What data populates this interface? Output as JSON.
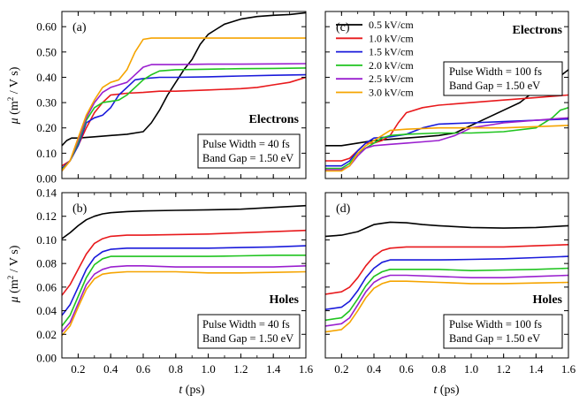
{
  "figure": {
    "xlabel_italic": "t",
    "xlabel_rest": " (ps)",
    "ylabel_mu": "μ",
    "ylabel_a": " (m",
    "ylabel_sup": "2",
    "ylabel_b": " / V s)"
  },
  "legend": [
    {
      "label": "0.5 kV/cm",
      "color": "#000000"
    },
    {
      "label": "1.0 kV/cm",
      "color": "#e8191c"
    },
    {
      "label": "1.5 kV/cm",
      "color": "#1a1adb"
    },
    {
      "label": "2.0 kV/cm",
      "color": "#1fc41f"
    },
    {
      "label": "2.5 kV/cm",
      "color": "#9a1fcf"
    },
    {
      "label": "3.0 kV/cm",
      "color": "#f5a400"
    }
  ],
  "chart_data": [
    {
      "type": "line",
      "panel": "(a)",
      "title": "Electrons",
      "box_lines": [
        "Pulse Width = 40 fs",
        "Band Gap = 1.50 eV"
      ],
      "xlabel": "t (ps)",
      "ylabel": "μ (m2 / V s)",
      "xlim": [
        0.1,
        1.6
      ],
      "ylim": [
        0.0,
        0.66
      ],
      "xticks": [
        "0.2",
        "0.4",
        "0.6",
        "0.8",
        "1.0",
        "1.2",
        "1.4",
        "1.6"
      ],
      "yticks": [
        "0.00",
        "0.10",
        "0.20",
        "0.30",
        "0.40",
        "0.50",
        "0.60"
      ],
      "series": [
        {
          "name": "0.5 kV/cm",
          "x": [
            0.1,
            0.13,
            0.16,
            0.2,
            0.3,
            0.4,
            0.5,
            0.6,
            0.65,
            0.7,
            0.75,
            0.8,
            0.85,
            0.9,
            0.95,
            1.0,
            1.05,
            1.1,
            1.2,
            1.3,
            1.4,
            1.5,
            1.6
          ],
          "y": [
            0.13,
            0.15,
            0.16,
            0.16,
            0.165,
            0.17,
            0.175,
            0.185,
            0.22,
            0.27,
            0.33,
            0.38,
            0.43,
            0.47,
            0.53,
            0.57,
            0.59,
            0.61,
            0.63,
            0.64,
            0.645,
            0.648,
            0.655
          ]
        },
        {
          "name": "1.0 kV/cm",
          "x": [
            0.1,
            0.15,
            0.2,
            0.25,
            0.3,
            0.35,
            0.4,
            0.5,
            0.6,
            0.7,
            0.8,
            1.0,
            1.2,
            1.3,
            1.4,
            1.5,
            1.6
          ],
          "y": [
            0.05,
            0.07,
            0.13,
            0.2,
            0.26,
            0.3,
            0.33,
            0.337,
            0.34,
            0.345,
            0.345,
            0.35,
            0.355,
            0.36,
            0.37,
            0.38,
            0.4
          ]
        },
        {
          "name": "1.5 kV/cm",
          "x": [
            0.1,
            0.15,
            0.2,
            0.25,
            0.3,
            0.35,
            0.4,
            0.45,
            0.5,
            0.55,
            0.6,
            0.7,
            0.8,
            1.0,
            1.2,
            1.4,
            1.6
          ],
          "y": [
            0.04,
            0.07,
            0.13,
            0.22,
            0.24,
            0.25,
            0.28,
            0.33,
            0.36,
            0.39,
            0.395,
            0.4,
            0.4,
            0.402,
            0.405,
            0.408,
            0.41
          ]
        },
        {
          "name": "2.0 kV/cm",
          "x": [
            0.1,
            0.15,
            0.2,
            0.25,
            0.3,
            0.35,
            0.4,
            0.45,
            0.5,
            0.55,
            0.6,
            0.65,
            0.7,
            0.8,
            1.0,
            1.2,
            1.4,
            1.6
          ],
          "y": [
            0.035,
            0.07,
            0.14,
            0.23,
            0.28,
            0.3,
            0.305,
            0.31,
            0.33,
            0.36,
            0.39,
            0.41,
            0.425,
            0.43,
            0.432,
            0.434,
            0.435,
            0.437
          ]
        },
        {
          "name": "2.5 kV/cm",
          "x": [
            0.1,
            0.15,
            0.2,
            0.25,
            0.3,
            0.35,
            0.4,
            0.45,
            0.5,
            0.55,
            0.6,
            0.65,
            0.7,
            0.8,
            1.0,
            1.2,
            1.4,
            1.6
          ],
          "y": [
            0.03,
            0.07,
            0.15,
            0.24,
            0.3,
            0.34,
            0.36,
            0.37,
            0.38,
            0.41,
            0.44,
            0.45,
            0.45,
            0.45,
            0.452,
            0.452,
            0.453,
            0.454
          ]
        },
        {
          "name": "3.0 kV/cm",
          "x": [
            0.1,
            0.15,
            0.2,
            0.25,
            0.3,
            0.35,
            0.4,
            0.45,
            0.5,
            0.55,
            0.6,
            0.65,
            0.7,
            0.8,
            1.0,
            1.2,
            1.4,
            1.6
          ],
          "y": [
            0.03,
            0.07,
            0.16,
            0.25,
            0.31,
            0.36,
            0.38,
            0.39,
            0.43,
            0.5,
            0.55,
            0.555,
            0.555,
            0.555,
            0.555,
            0.555,
            0.555,
            0.555
          ]
        }
      ]
    },
    {
      "type": "line",
      "panel": "(c)",
      "title": "Electrons",
      "box_lines": [
        "Pulse Width = 100 fs",
        "Band Gap = 1.50 eV"
      ],
      "xlabel": "t (ps)",
      "ylabel": "μ (m2 / V s)",
      "xlim": [
        0.1,
        1.6
      ],
      "ylim": [
        0.0,
        0.66
      ],
      "xticks": [
        "0.2",
        "0.4",
        "0.6",
        "0.8",
        "1.0",
        "1.2",
        "1.4",
        "1.6"
      ],
      "yticks": [],
      "series": [
        {
          "name": "0.5 kV/cm",
          "x": [
            0.1,
            0.2,
            0.3,
            0.4,
            0.5,
            0.6,
            0.7,
            0.8,
            0.9,
            1.0,
            1.1,
            1.2,
            1.3,
            1.4,
            1.5,
            1.6
          ],
          "y": [
            0.13,
            0.13,
            0.14,
            0.15,
            0.155,
            0.16,
            0.165,
            0.17,
            0.18,
            0.21,
            0.24,
            0.27,
            0.3,
            0.35,
            0.38,
            0.43
          ]
        },
        {
          "name": "1.0 kV/cm",
          "x": [
            0.1,
            0.2,
            0.25,
            0.3,
            0.35,
            0.4,
            0.45,
            0.5,
            0.55,
            0.6,
            0.7,
            0.8,
            1.0,
            1.2,
            1.4,
            1.6
          ],
          "y": [
            0.07,
            0.07,
            0.08,
            0.11,
            0.14,
            0.14,
            0.15,
            0.17,
            0.22,
            0.26,
            0.28,
            0.29,
            0.3,
            0.31,
            0.32,
            0.33
          ]
        },
        {
          "name": "1.5 kV/cm",
          "x": [
            0.1,
            0.2,
            0.25,
            0.3,
            0.35,
            0.4,
            0.5,
            0.6,
            0.7,
            0.8,
            1.0,
            1.2,
            1.4,
            1.6
          ],
          "y": [
            0.05,
            0.05,
            0.07,
            0.11,
            0.14,
            0.16,
            0.165,
            0.175,
            0.2,
            0.215,
            0.22,
            0.225,
            0.23,
            0.235
          ]
        },
        {
          "name": "2.0 kV/cm",
          "x": [
            0.1,
            0.2,
            0.25,
            0.3,
            0.35,
            0.4,
            0.45,
            0.5,
            0.6,
            0.8,
            1.0,
            1.2,
            1.4,
            1.5,
            1.55,
            1.6
          ],
          "y": [
            0.04,
            0.04,
            0.06,
            0.1,
            0.12,
            0.14,
            0.16,
            0.17,
            0.175,
            0.18,
            0.18,
            0.185,
            0.2,
            0.24,
            0.27,
            0.28
          ]
        },
        {
          "name": "2.5 kV/cm",
          "x": [
            0.1,
            0.2,
            0.25,
            0.3,
            0.35,
            0.4,
            0.5,
            0.6,
            0.7,
            0.8,
            0.9,
            1.0,
            1.2,
            1.4,
            1.6
          ],
          "y": [
            0.035,
            0.035,
            0.05,
            0.09,
            0.12,
            0.13,
            0.135,
            0.14,
            0.145,
            0.15,
            0.17,
            0.2,
            0.22,
            0.23,
            0.24
          ]
        },
        {
          "name": "3.0 kV/cm",
          "x": [
            0.1,
            0.2,
            0.25,
            0.3,
            0.35,
            0.4,
            0.45,
            0.5,
            0.6,
            0.8,
            1.0,
            1.2,
            1.4,
            1.6
          ],
          "y": [
            0.03,
            0.03,
            0.05,
            0.1,
            0.13,
            0.15,
            0.17,
            0.19,
            0.195,
            0.2,
            0.2,
            0.2,
            0.205,
            0.21
          ]
        }
      ]
    },
    {
      "type": "line",
      "panel": "(b)",
      "title": "Holes",
      "box_lines": [
        "Pulse Width = 40 fs",
        "Band Gap = 1.50 eV"
      ],
      "xlabel": "t (ps)",
      "ylabel": "μ (m2 / V s)",
      "xlim": [
        0.1,
        1.6
      ],
      "ylim": [
        0.0,
        0.14
      ],
      "xticks": [
        "0.2",
        "0.4",
        "0.6",
        "0.8",
        "1.0",
        "1.2",
        "1.4",
        "1.6"
      ],
      "yticks": [
        "0.00",
        "0.02",
        "0.04",
        "0.06",
        "0.08",
        "0.10",
        "0.12",
        "0.14"
      ],
      "series": [
        {
          "name": "0.5 kV/cm",
          "x": [
            0.1,
            0.15,
            0.2,
            0.25,
            0.3,
            0.35,
            0.4,
            0.5,
            0.6,
            0.8,
            1.0,
            1.2,
            1.4,
            1.6
          ],
          "y": [
            0.101,
            0.106,
            0.112,
            0.117,
            0.12,
            0.122,
            0.123,
            0.124,
            0.1245,
            0.125,
            0.1255,
            0.126,
            0.1275,
            0.129
          ]
        },
        {
          "name": "1.0 kV/cm",
          "x": [
            0.1,
            0.15,
            0.2,
            0.25,
            0.3,
            0.35,
            0.4,
            0.5,
            0.6,
            0.8,
            1.0,
            1.2,
            1.4,
            1.6
          ],
          "y": [
            0.053,
            0.062,
            0.075,
            0.088,
            0.097,
            0.101,
            0.103,
            0.104,
            0.104,
            0.1045,
            0.105,
            0.106,
            0.107,
            0.108
          ]
        },
        {
          "name": "1.5 kV/cm",
          "x": [
            0.1,
            0.15,
            0.2,
            0.25,
            0.3,
            0.35,
            0.4,
            0.5,
            0.6,
            0.8,
            1.0,
            1.2,
            1.4,
            1.6
          ],
          "y": [
            0.036,
            0.045,
            0.06,
            0.075,
            0.085,
            0.09,
            0.092,
            0.093,
            0.093,
            0.093,
            0.093,
            0.0935,
            0.094,
            0.095
          ]
        },
        {
          "name": "2.0 kV/cm",
          "x": [
            0.1,
            0.15,
            0.2,
            0.25,
            0.3,
            0.35,
            0.4,
            0.5,
            0.6,
            0.8,
            1.0,
            1.2,
            1.4,
            1.6
          ],
          "y": [
            0.027,
            0.036,
            0.052,
            0.068,
            0.079,
            0.084,
            0.086,
            0.086,
            0.086,
            0.086,
            0.086,
            0.0865,
            0.087,
            0.087
          ]
        },
        {
          "name": "2.5 kV/cm",
          "x": [
            0.1,
            0.15,
            0.2,
            0.25,
            0.3,
            0.35,
            0.4,
            0.5,
            0.6,
            0.8,
            1.0,
            1.2,
            1.4,
            1.6
          ],
          "y": [
            0.022,
            0.03,
            0.046,
            0.062,
            0.071,
            0.075,
            0.077,
            0.078,
            0.078,
            0.077,
            0.077,
            0.077,
            0.077,
            0.078
          ]
        },
        {
          "name": "3.0 kV/cm",
          "x": [
            0.1,
            0.15,
            0.2,
            0.25,
            0.3,
            0.35,
            0.4,
            0.5,
            0.6,
            0.8,
            1.0,
            1.2,
            1.4,
            1.6
          ],
          "y": [
            0.019,
            0.027,
            0.043,
            0.058,
            0.067,
            0.071,
            0.072,
            0.073,
            0.073,
            0.073,
            0.072,
            0.072,
            0.0725,
            0.073
          ]
        }
      ]
    },
    {
      "type": "line",
      "panel": "(d)",
      "title": "Holes",
      "box_lines": [
        "Pulse Width = 100 fs",
        "Band Gap = 1.50 eV"
      ],
      "xlabel": "t (ps)",
      "ylabel": "μ (m2 / V s)",
      "xlim": [
        0.1,
        1.6
      ],
      "ylim": [
        0.0,
        0.14
      ],
      "xticks": [
        "0.2",
        "0.4",
        "0.6",
        "0.8",
        "1.0",
        "1.2",
        "1.4",
        "1.6"
      ],
      "yticks": [],
      "series": [
        {
          "name": "0.5 kV/cm",
          "x": [
            0.1,
            0.2,
            0.3,
            0.35,
            0.4,
            0.45,
            0.5,
            0.6,
            0.7,
            0.8,
            1.0,
            1.2,
            1.4,
            1.6
          ],
          "y": [
            0.103,
            0.104,
            0.107,
            0.11,
            0.113,
            0.114,
            0.115,
            0.1145,
            0.113,
            0.112,
            0.1105,
            0.11,
            0.1105,
            0.112
          ]
        },
        {
          "name": "1.0 kV/cm",
          "x": [
            0.1,
            0.2,
            0.25,
            0.3,
            0.35,
            0.4,
            0.45,
            0.5,
            0.6,
            0.8,
            1.0,
            1.2,
            1.4,
            1.6
          ],
          "y": [
            0.054,
            0.056,
            0.06,
            0.068,
            0.078,
            0.086,
            0.091,
            0.093,
            0.094,
            0.094,
            0.094,
            0.094,
            0.095,
            0.096
          ]
        },
        {
          "name": "1.5 kV/cm",
          "x": [
            0.1,
            0.2,
            0.25,
            0.3,
            0.35,
            0.4,
            0.45,
            0.5,
            0.6,
            0.8,
            1.0,
            1.2,
            1.4,
            1.6
          ],
          "y": [
            0.041,
            0.043,
            0.048,
            0.057,
            0.068,
            0.076,
            0.081,
            0.083,
            0.083,
            0.083,
            0.0835,
            0.084,
            0.085,
            0.086
          ]
        },
        {
          "name": "2.0 kV/cm",
          "x": [
            0.1,
            0.2,
            0.25,
            0.3,
            0.35,
            0.4,
            0.45,
            0.5,
            0.6,
            0.8,
            1.0,
            1.2,
            1.4,
            1.6
          ],
          "y": [
            0.032,
            0.034,
            0.04,
            0.05,
            0.061,
            0.069,
            0.073,
            0.075,
            0.075,
            0.075,
            0.074,
            0.0745,
            0.075,
            0.076
          ]
        },
        {
          "name": "2.5 kV/cm",
          "x": [
            0.1,
            0.2,
            0.25,
            0.3,
            0.35,
            0.4,
            0.45,
            0.5,
            0.6,
            0.8,
            1.0,
            1.2,
            1.4,
            1.6
          ],
          "y": [
            0.027,
            0.029,
            0.034,
            0.045,
            0.056,
            0.064,
            0.068,
            0.07,
            0.07,
            0.069,
            0.068,
            0.068,
            0.069,
            0.07
          ]
        },
        {
          "name": "3.0 kV/cm",
          "x": [
            0.1,
            0.2,
            0.25,
            0.3,
            0.35,
            0.4,
            0.45,
            0.5,
            0.6,
            0.8,
            1.0,
            1.2,
            1.4,
            1.6
          ],
          "y": [
            0.022,
            0.024,
            0.03,
            0.04,
            0.051,
            0.059,
            0.063,
            0.065,
            0.065,
            0.064,
            0.063,
            0.063,
            0.0635,
            0.064
          ]
        }
      ]
    }
  ]
}
